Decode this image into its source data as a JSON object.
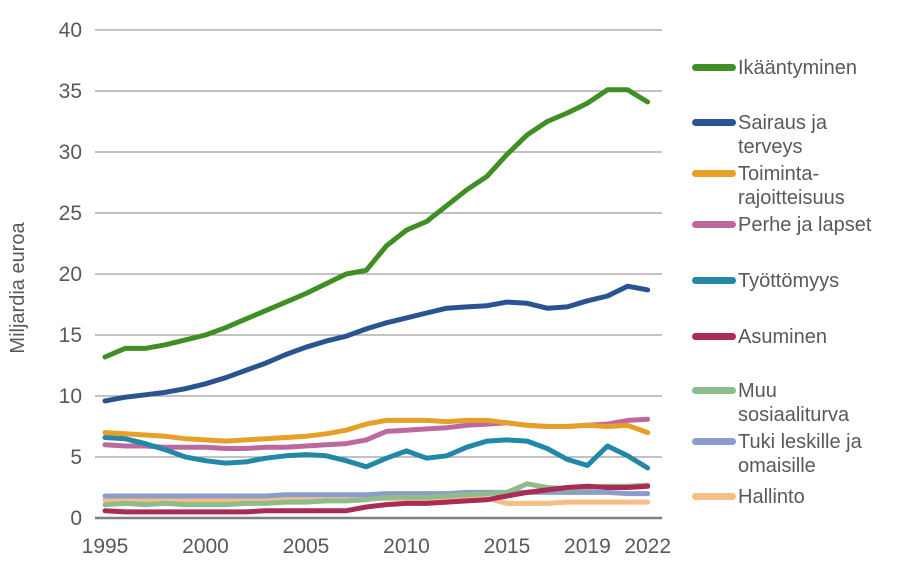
{
  "chart_data": {
    "type": "line",
    "title": "",
    "ylabel": "Miljardia euroa",
    "xlabel": "",
    "ylim": [
      0,
      40
    ],
    "yticks": [
      0,
      5,
      10,
      15,
      20,
      25,
      30,
      35,
      40
    ],
    "grid": "horizontal",
    "legend_position": "right",
    "x_years": [
      1995,
      1996,
      1997,
      1998,
      1999,
      2000,
      2001,
      2002,
      2003,
      2004,
      2005,
      2006,
      2007,
      2008,
      2009,
      2010,
      2011,
      2012,
      2013,
      2014,
      2015,
      2016,
      2017,
      2018,
      2019,
      2020,
      2021,
      2022
    ],
    "xtick_years": [
      1995,
      2000,
      2005,
      2010,
      2015,
      2019,
      2022
    ],
    "xtick_labels": [
      "1995",
      "2000",
      "2005",
      "2010",
      "2015",
      "2019",
      "2022"
    ],
    "series": [
      {
        "name": "Ikääntyminen",
        "legend_label": "Ikääntyminen",
        "color": "#3F8F24",
        "values": [
          13.2,
          13.9,
          13.9,
          14.2,
          14.6,
          15.0,
          15.6,
          16.3,
          17.0,
          17.7,
          18.4,
          19.2,
          20.0,
          20.3,
          22.3,
          23.6,
          24.3,
          25.6,
          26.9,
          28.0,
          29.8,
          31.4,
          32.5,
          33.2,
          34.0,
          35.1,
          35.1,
          34.1
        ]
      },
      {
        "name": "Sairaus ja terveys",
        "legend_label": "Sairaus ja\nterveys",
        "color": "#2B5291",
        "values": [
          9.6,
          9.9,
          10.1,
          10.3,
          10.6,
          11.0,
          11.5,
          12.1,
          12.7,
          13.4,
          14.0,
          14.5,
          14.9,
          15.5,
          16.0,
          16.4,
          16.8,
          17.2,
          17.3,
          17.4,
          17.7,
          17.6,
          17.2,
          17.3,
          17.8,
          18.2,
          19.0,
          18.7
        ]
      },
      {
        "name": "Toimintarajoitteisuus",
        "legend_label": "Toiminta-\nrajoitteisuus",
        "color": "#E6A028",
        "values": [
          7.0,
          6.9,
          6.8,
          6.7,
          6.5,
          6.4,
          6.3,
          6.4,
          6.5,
          6.6,
          6.7,
          6.9,
          7.2,
          7.7,
          8.0,
          8.0,
          8.0,
          7.9,
          8.0,
          8.0,
          7.8,
          7.6,
          7.5,
          7.5,
          7.6,
          7.5,
          7.6,
          7.0
        ]
      },
      {
        "name": "Perhe ja lapset",
        "legend_label": "Perhe ja lapset",
        "color": "#BC69A0",
        "values": [
          6.0,
          5.9,
          5.9,
          5.8,
          5.8,
          5.8,
          5.7,
          5.7,
          5.8,
          5.8,
          5.9,
          6.0,
          6.1,
          6.4,
          7.1,
          7.2,
          7.3,
          7.4,
          7.6,
          7.7,
          7.8,
          7.6,
          7.5,
          7.5,
          7.6,
          7.7,
          8.0,
          8.1
        ]
      },
      {
        "name": "Työttömyys",
        "legend_label": "Työttömyys",
        "color": "#2388A8",
        "values": [
          6.6,
          6.5,
          6.1,
          5.6,
          5.0,
          4.7,
          4.5,
          4.6,
          4.9,
          5.1,
          5.2,
          5.1,
          4.7,
          4.2,
          4.9,
          5.5,
          4.9,
          5.1,
          5.8,
          6.3,
          6.4,
          6.3,
          5.7,
          4.8,
          4.3,
          5.9,
          5.1,
          4.1
        ]
      },
      {
        "name": "Asuminen",
        "legend_label": "Asuminen",
        "color": "#AA2B55",
        "values": [
          0.6,
          0.5,
          0.5,
          0.5,
          0.5,
          0.5,
          0.5,
          0.5,
          0.6,
          0.6,
          0.6,
          0.6,
          0.6,
          0.9,
          1.1,
          1.2,
          1.2,
          1.3,
          1.4,
          1.5,
          1.8,
          2.1,
          2.3,
          2.5,
          2.6,
          2.5,
          2.5,
          2.6
        ]
      },
      {
        "name": "Muu sosiaaliturva",
        "legend_label": "Muu\nsosiaaliturva",
        "color": "#8FBC8B",
        "values": [
          1.1,
          1.2,
          1.1,
          1.2,
          1.1,
          1.1,
          1.1,
          1.2,
          1.2,
          1.3,
          1.3,
          1.4,
          1.4,
          1.5,
          1.7,
          1.7,
          1.7,
          1.8,
          1.9,
          2.0,
          2.1,
          2.8,
          2.5,
          2.4,
          2.5,
          2.6,
          2.6,
          2.7
        ]
      },
      {
        "name": "Tuki leskille ja omaisille",
        "legend_label": "Tuki leskille ja\nomaisille",
        "color": "#8B9DCA",
        "values": [
          1.8,
          1.8,
          1.8,
          1.8,
          1.8,
          1.8,
          1.8,
          1.8,
          1.8,
          1.9,
          1.9,
          1.9,
          1.9,
          1.9,
          2.0,
          2.0,
          2.0,
          2.0,
          2.1,
          2.1,
          2.1,
          2.1,
          2.1,
          2.1,
          2.1,
          2.1,
          2.0,
          2.0
        ]
      },
      {
        "name": "Hallinto",
        "legend_label": "Hallinto",
        "color": "#F6BD84",
        "values": [
          1.5,
          1.4,
          1.5,
          1.4,
          1.5,
          1.4,
          1.4,
          1.5,
          1.4,
          1.5,
          1.5,
          1.5,
          1.5,
          1.6,
          1.6,
          1.6,
          1.6,
          1.6,
          1.6,
          1.6,
          1.2,
          1.2,
          1.2,
          1.3,
          1.3,
          1.3,
          1.3,
          1.3
        ]
      }
    ]
  },
  "colors": {
    "axis_text": "#595959",
    "gridline": "#9E9E9E",
    "axis_line": "#7F7F7F"
  }
}
